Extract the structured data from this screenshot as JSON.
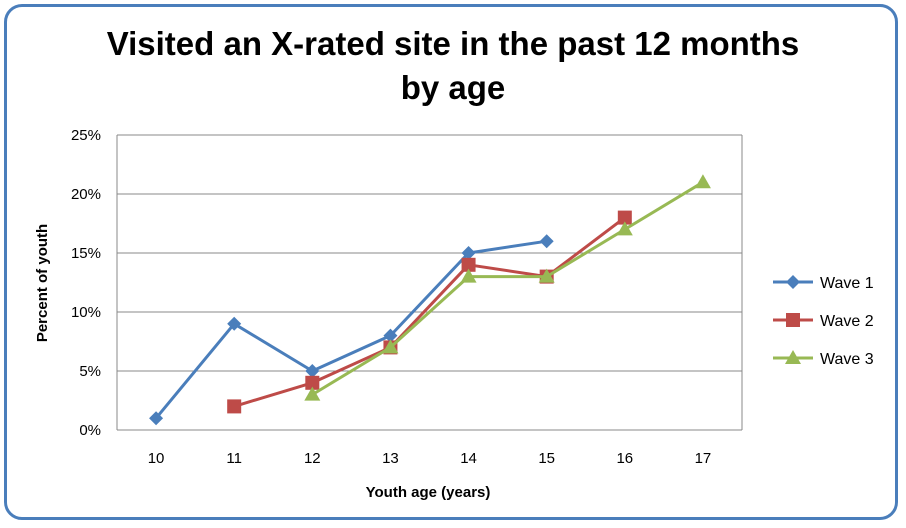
{
  "chart_data": {
    "type": "line",
    "title_line1": "Visited an X-rated site in the past 12 months",
    "title_line2": "by age",
    "xlabel": "Youth age (years)",
    "ylabel": "Percent of youth",
    "categories": [
      "10",
      "11",
      "12",
      "13",
      "14",
      "15",
      "16",
      "17"
    ],
    "ylim": [
      0,
      25
    ],
    "yticks": [
      0,
      5,
      10,
      15,
      20,
      25
    ],
    "ytick_labels": [
      "0%",
      "5%",
      "10%",
      "15%",
      "20%",
      "25%"
    ],
    "grid": "horizontal",
    "legend_position": "right",
    "series": [
      {
        "name": "Wave 1",
        "color": "#4a7ebb",
        "marker": "diamond",
        "values": [
          1,
          9,
          5,
          8,
          15,
          16,
          null,
          null
        ]
      },
      {
        "name": "Wave 2",
        "color": "#be4b48",
        "marker": "square",
        "values": [
          null,
          2,
          4,
          7,
          14,
          13,
          18,
          null
        ]
      },
      {
        "name": "Wave 3",
        "color": "#98b954",
        "marker": "triangle",
        "values": [
          null,
          null,
          3,
          7,
          13,
          13,
          17,
          21
        ]
      }
    ]
  }
}
